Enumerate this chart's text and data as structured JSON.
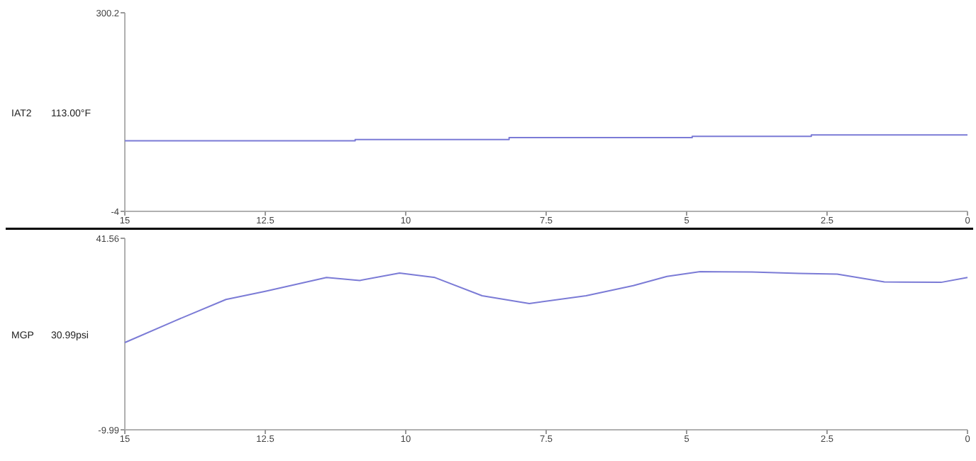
{
  "chart_data": [
    {
      "type": "step",
      "ylabel": "IAT2",
      "annotations": [
        "113.00°F"
      ],
      "xlim": [
        15,
        0
      ],
      "xticks": [
        15,
        12.5,
        10,
        7.5,
        5,
        2.5,
        0
      ],
      "ylim": [
        -4,
        300.2
      ],
      "yticks": [
        -4,
        300.2
      ],
      "grid": false,
      "series": [
        {
          "color": "#7b7bd6",
          "x": [
            15,
            10.9,
            8.16,
            4.9,
            2.78,
            0
          ],
          "values": [
            104,
            106,
            109,
            111,
            113,
            113
          ]
        }
      ]
    },
    {
      "type": "line",
      "ylabel": "MGP",
      "annotations": [
        "30.99psi"
      ],
      "xlim": [
        15,
        0
      ],
      "xticks": [
        15,
        12.5,
        10,
        7.5,
        5,
        2.5,
        0
      ],
      "ylim": [
        -9.99,
        41.56
      ],
      "yticks": [
        -9.99,
        41.56
      ],
      "grid": false,
      "series": [
        {
          "color": "#7b7bd6",
          "x": [
            15,
            14.1,
            13.2,
            12.5,
            11.41,
            10.82,
            10.11,
            9.48,
            8.64,
            7.8,
            6.79,
            5.95,
            5.35,
            4.76,
            3.84,
            3.0,
            2.32,
            1.48,
            0.47,
            0
          ],
          "values": [
            13.5,
            19.4,
            25.1,
            27.3,
            31.0,
            30.2,
            32.2,
            31.0,
            26.1,
            24.0,
            26.1,
            28.8,
            31.3,
            32.6,
            32.5,
            32.1,
            31.9,
            29.8,
            29.7,
            31.0
          ]
        }
      ]
    }
  ]
}
